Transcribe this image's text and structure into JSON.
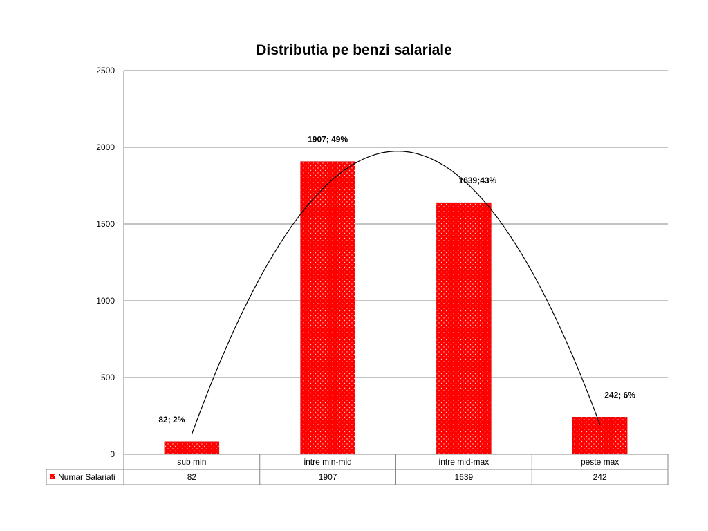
{
  "chart_data": {
    "type": "bar",
    "title": "Distributia pe benzi salariale",
    "categories": [
      "sub min",
      "intre min-mid",
      "intre mid-max",
      "peste max"
    ],
    "series": [
      {
        "name": "Numar  Salariati",
        "values": [
          82,
          1907,
          1639,
          242
        ],
        "color": "#ff0000"
      }
    ],
    "data_labels": [
      "82; 2%",
      "1907; 49%",
      "1639;43%",
      "242; 6%"
    ],
    "ylim": [
      0,
      2500
    ],
    "yticks": [
      0,
      500,
      1000,
      1500,
      2000,
      2500
    ],
    "grid": true,
    "data_table": true,
    "trend_curve": "polynomial",
    "colors": {
      "bar": "#ff0000",
      "grid": "#878787",
      "curve": "#000000"
    }
  }
}
